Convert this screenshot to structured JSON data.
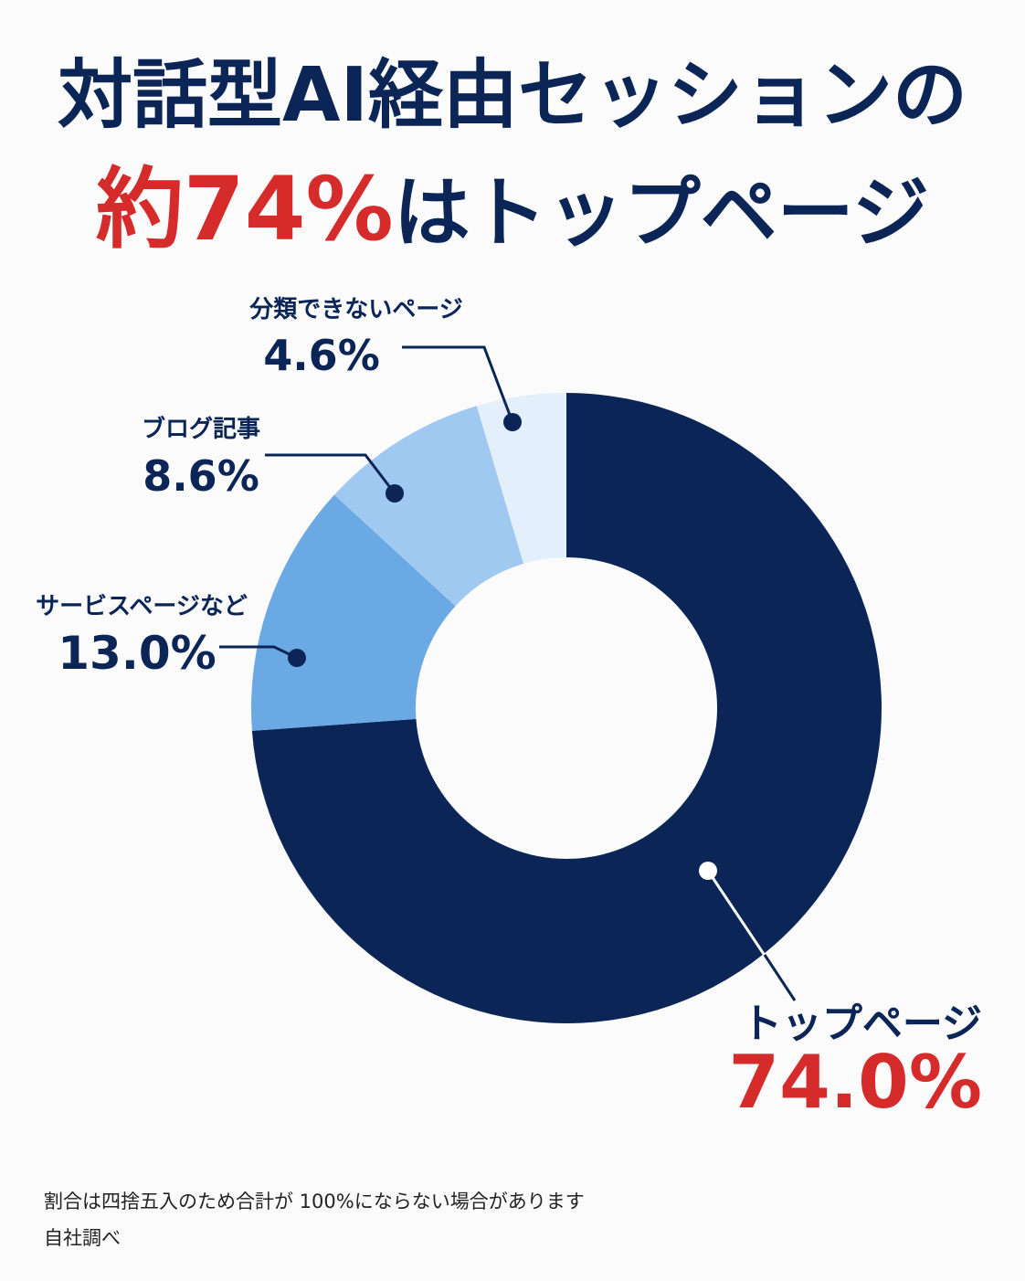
{
  "chart_data": {
    "type": "donut",
    "title": "対話型AI経由セッションの",
    "title_highlight": "約74%",
    "title_rest": "はトップページ",
    "highlight_color": "#d62b2b",
    "categories": [
      "トップページ",
      "サービスページなど",
      "ブログ記事",
      "分類できないページ"
    ],
    "values": [
      74.0,
      13.0,
      8.6,
      4.6
    ],
    "value_labels": [
      "74.0%",
      "13.0%",
      "8.6%",
      "4.6%"
    ],
    "colors": [
      "#0b2557",
      "#6aa9e4",
      "#9fc9f0",
      "#e3effb"
    ],
    "notes": [
      "割合は四捨五入のため合計が 100%にならない場合があります",
      "自社調べ"
    ]
  }
}
